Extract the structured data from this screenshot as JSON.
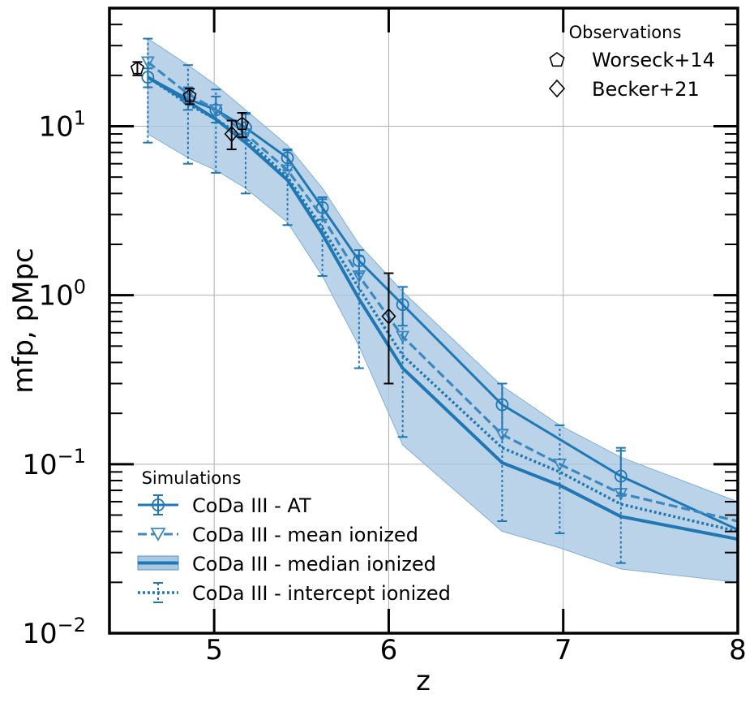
{
  "chart_data": {
    "type": "line",
    "xlabel": "z",
    "ylabel": "mfp, pMpc",
    "xlim": [
      4.4,
      8.0
    ],
    "ylim": [
      0.01,
      50
    ],
    "yscale": "log",
    "grid": true,
    "x_ticks": [
      {
        "value": 5,
        "label": "5"
      },
      {
        "value": 6,
        "label": "6"
      },
      {
        "value": 7,
        "label": "7"
      },
      {
        "value": 8,
        "label": "8"
      }
    ],
    "y_ticks": [
      {
        "value": 0.01,
        "base": "10",
        "exp": "−2"
      },
      {
        "value": 0.1,
        "base": "10",
        "exp": "−1"
      },
      {
        "value": 1,
        "base": "10",
        "exp": "0"
      },
      {
        "value": 10,
        "base": "10",
        "exp": "1"
      }
    ],
    "colors": {
      "sim": "#1f77b4",
      "band": "#a9c8e2",
      "obs": "#000000"
    },
    "series": [
      {
        "name": "CoDa III - AT",
        "style": "solid",
        "marker": "circle",
        "x": [
          4.62,
          4.85,
          5.01,
          5.18,
          5.42,
          5.62,
          5.83,
          6.08,
          6.65,
          7.33,
          8.0
        ],
        "y": [
          19.5,
          14.5,
          12.5,
          9.8,
          6.5,
          3.3,
          1.6,
          0.88,
          0.225,
          0.085,
          0.041
        ],
        "err_low": [
          17.0,
          12.5,
          10.5,
          8.2,
          5.5,
          2.8,
          1.35,
          0.66,
          0.16,
          0.065,
          null
        ],
        "err_high": [
          22.0,
          17.0,
          15.0,
          11.8,
          7.3,
          3.8,
          1.85,
          1.12,
          0.3,
          0.125,
          null
        ],
        "marker_x": [
          4.62,
          4.85,
          5.01,
          5.18,
          5.42,
          5.62,
          5.83,
          6.08,
          6.65,
          7.33
        ]
      },
      {
        "name": "CoDa III - mean ionized",
        "style": "dashed",
        "marker": "triangle-down",
        "x": [
          4.62,
          4.85,
          5.01,
          5.18,
          5.42,
          5.62,
          5.83,
          6.08,
          6.65,
          6.98,
          7.33,
          8.0
        ],
        "y": [
          24.0,
          15.5,
          12.5,
          9.0,
          5.5,
          2.9,
          1.3,
          0.57,
          0.15,
          0.1,
          0.067,
          0.046
        ],
        "marker_x": [
          4.62,
          4.85,
          5.01,
          5.18,
          5.42,
          5.83,
          6.08,
          6.65,
          6.98,
          7.33
        ]
      },
      {
        "name": "CoDa III - median ionized",
        "style": "solid-thick",
        "marker": "none",
        "x": [
          4.62,
          4.85,
          5.01,
          5.18,
          5.42,
          5.62,
          5.83,
          6.08,
          6.65,
          6.98,
          7.33,
          8.0
        ],
        "y": [
          19.5,
          14.0,
          11.0,
          8.0,
          4.8,
          2.3,
          0.95,
          0.37,
          0.102,
          0.075,
          0.049,
          0.036
        ],
        "band_low": [
          9.0,
          6.5,
          5.5,
          4.3,
          2.7,
          1.3,
          0.5,
          0.13,
          0.04,
          0.032,
          0.024,
          0.02
        ],
        "band_high": [
          33.0,
          23.0,
          17.5,
          12.5,
          7.7,
          4.3,
          2.0,
          1.05,
          0.29,
          0.17,
          0.11,
          0.06
        ]
      },
      {
        "name": "CoDa III - intercept ionized",
        "style": "dotted",
        "marker": "none",
        "x": [
          4.62,
          4.85,
          5.01,
          5.18,
          5.42,
          5.62,
          5.83,
          6.08,
          6.65,
          6.98,
          7.33,
          8.0
        ],
        "y": [
          19.5,
          13.5,
          11.0,
          8.5,
          5.0,
          2.5,
          1.1,
          0.44,
          0.125,
          0.09,
          0.058,
          0.04
        ],
        "err_low": [
          8.0,
          6.0,
          5.3,
          4.0,
          2.6,
          1.3,
          0.37,
          0.145,
          0.046,
          0.039,
          0.026,
          null
        ],
        "err_high": [
          33.0,
          23.0,
          16.5,
          12.0,
          7.2,
          3.7,
          1.7,
          1.12,
          0.3,
          0.17,
          0.12,
          null
        ]
      }
    ],
    "observations": [
      {
        "name": "Worseck+14",
        "marker": "pentagon",
        "points": [
          {
            "x": 4.56,
            "y": 22.0,
            "err_low": 20.0,
            "err_high": 24.0
          },
          {
            "x": 4.86,
            "y": 15.1,
            "err_low": 13.5,
            "err_high": 16.7
          },
          {
            "x": 5.16,
            "y": 10.3,
            "err_low": 8.6,
            "err_high": 12.0
          }
        ]
      },
      {
        "name": "Becker+21",
        "marker": "diamond",
        "points": [
          {
            "x": 5.1,
            "y": 9.0,
            "err_low": 7.3,
            "err_high": 10.8
          },
          {
            "x": 6.0,
            "y": 0.75,
            "err_low": 0.3,
            "err_high": 1.35
          }
        ]
      }
    ],
    "legend_observations": {
      "title": "Observations",
      "position": "top-right",
      "entries": [
        "Worseck+14",
        "Becker+21"
      ]
    },
    "legend_simulations": {
      "title": "Simulations",
      "position": "bottom-left",
      "entries": [
        "CoDa III - AT",
        "CoDa III - mean ionized",
        "CoDa III - median ionized",
        "CoDa III - intercept ionized"
      ]
    }
  }
}
